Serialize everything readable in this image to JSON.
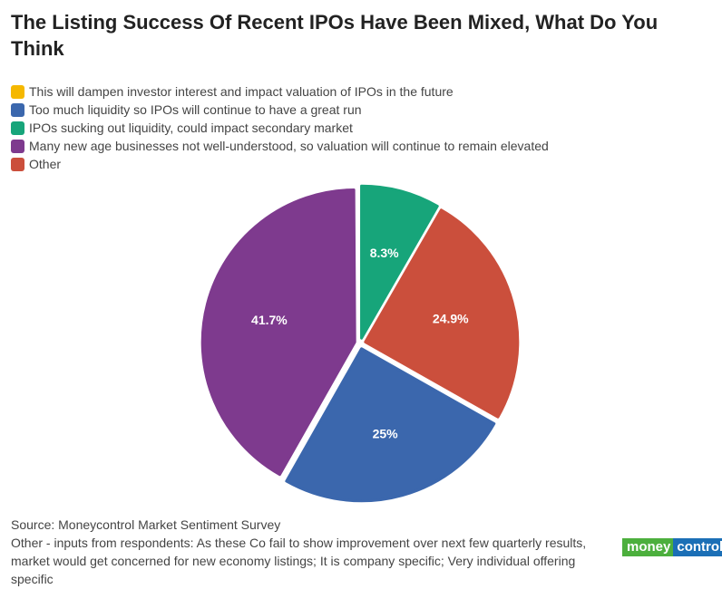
{
  "chart_data": {
    "type": "pie",
    "title": "The Listing Success Of Recent IPOs Have Been Mixed, What Do You Think",
    "legend": [
      {
        "label": "This will dampen investor interest and impact valuation of IPOs in the future",
        "color": "#f5b800"
      },
      {
        "label": "Too much liquidity so IPOs will continue to have a great run",
        "color": "#3b67ad"
      },
      {
        "label": "IPOs sucking out liquidity, could impact secondary market",
        "color": "#17a57a"
      },
      {
        "label": "Many new age businesses not well-understood, so valuation will continue to remain elevated",
        "color": "#7e3a8e"
      },
      {
        "label": "Other",
        "color": "#cb4f3c"
      }
    ],
    "slices": [
      {
        "name": "IPOs sucking out liquidity, could impact secondary market",
        "value": 8.3,
        "label": "8.3%",
        "color": "#17a57a"
      },
      {
        "name": "Other",
        "value": 24.9,
        "label": "24.9%",
        "color": "#cb4f3c"
      },
      {
        "name": "Too much liquidity so IPOs will continue to have a great run",
        "value": 25,
        "label": "25%",
        "color": "#3b67ad"
      },
      {
        "name": "Many new age businesses not well-understood, so valuation will continue to remain elevated",
        "value": 41.7,
        "label": "41.7%",
        "color": "#7e3a8e"
      }
    ],
    "legend_placement": "top-left"
  },
  "footer": {
    "source": "Source: Moneycontrol Market Sentiment Survey",
    "note": "Other - inputs from respondents: As these Co fail to show improvement over next few quarterly results, market would get concerned for new economy listings; It is company specific; Very individual offering specific"
  },
  "logo": {
    "part1": "money",
    "part2": "control"
  }
}
